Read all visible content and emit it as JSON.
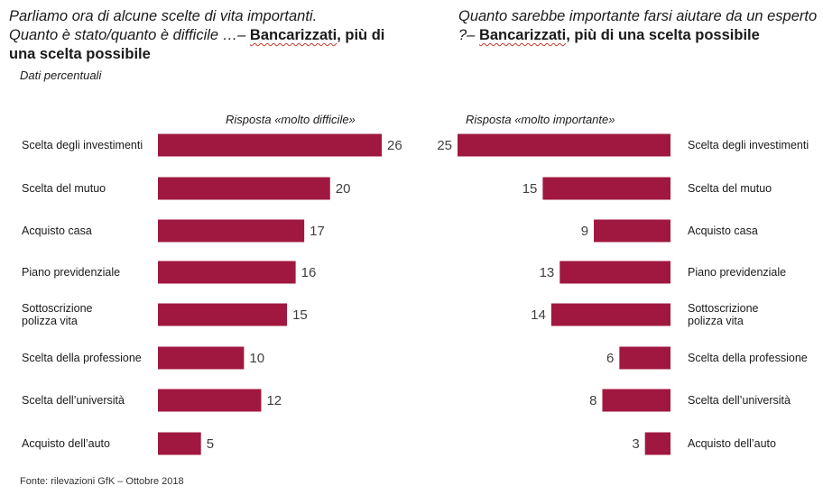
{
  "left_title": {
    "line1": "Parliamo ora di alcune scelte di vita importanti.",
    "line2_prefix": "Quanto è stato/quanto è difficile …– ",
    "emph": "Bancarizzati",
    "suffix": ", più di una scelta possibile"
  },
  "right_title": {
    "prefix": "Quanto sarebbe importante farsi aiutare da un esperto ?– ",
    "emph": "Bancarizzati",
    "suffix": ", più di una scelta possibile"
  },
  "subtitle": "Dati percentuali",
  "source": "Fonte: rilevazioni GfK – Ottobre 2018",
  "colors": {
    "bar": "#A0183F"
  },
  "chart_data": [
    {
      "type": "bar",
      "orientation": "horizontal",
      "title": "Risposta «molto difficile»",
      "categories": [
        "Scelta degli investimenti",
        "Scelta del mutuo",
        "Acquisto casa",
        "Piano previdenziale",
        "Sottoscrizione polizza vita",
        "Scelta della professione",
        "Scelta dell’università",
        "Acquisto dell’auto"
      ],
      "category_lines": [
        [
          "Scelta degli investimenti"
        ],
        [
          "Scelta del mutuo"
        ],
        [
          "Acquisto casa"
        ],
        [
          "Piano previdenziale"
        ],
        [
          "Sottoscrizione",
          "polizza vita"
        ],
        [
          "Scelta della professione"
        ],
        [
          "Scelta dell’università"
        ],
        [
          "Acquisto dell’auto"
        ]
      ],
      "values": [
        26,
        20,
        17,
        16,
        15,
        10,
        12,
        5
      ],
      "xlim": [
        0,
        26
      ]
    },
    {
      "type": "bar",
      "orientation": "horizontal",
      "direction": "right-to-left",
      "title": "Risposta «molto importante»",
      "categories": [
        "Scelta degli investimenti",
        "Scelta del mutuo",
        "Acquisto casa",
        "Piano previdenziale",
        "Sottoscrizione polizza vita",
        "Scelta della professione",
        "Scelta dell’università",
        "Acquisto dell’auto"
      ],
      "category_lines": [
        [
          "Scelta degli investimenti"
        ],
        [
          "Scelta del mutuo"
        ],
        [
          "Acquisto casa"
        ],
        [
          "Piano previdenziale"
        ],
        [
          "Sottoscrizione",
          "polizza vita"
        ],
        [
          "Scelta della professione"
        ],
        [
          "Scelta dell’università"
        ],
        [
          "Acquisto dell’auto"
        ]
      ],
      "values": [
        25,
        15,
        9,
        13,
        14,
        6,
        8,
        3
      ],
      "xlim": [
        0,
        25
      ]
    }
  ]
}
